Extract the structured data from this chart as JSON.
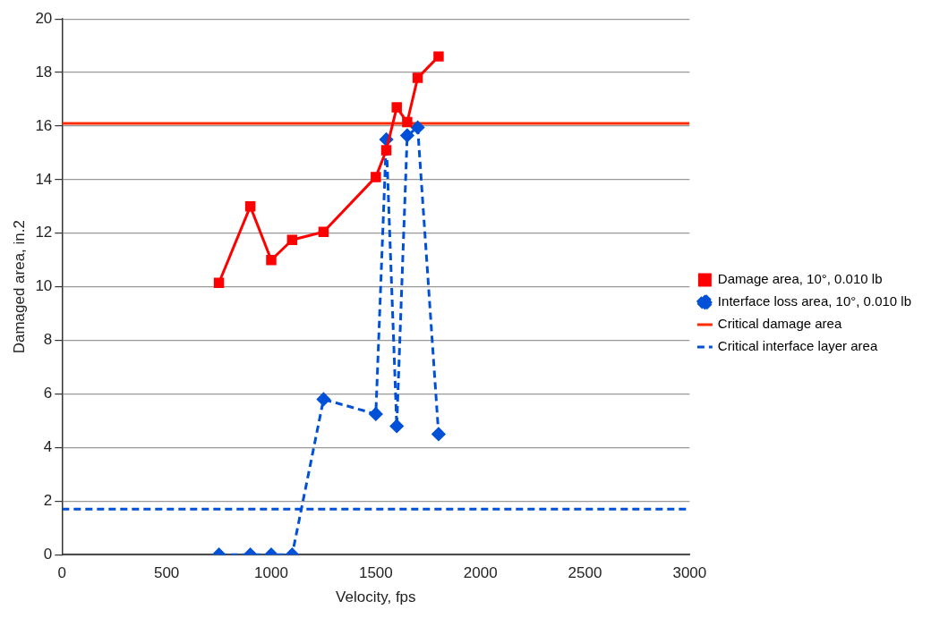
{
  "chart_data": {
    "type": "line",
    "xlabel": "Velocity, fps",
    "ylabel": "Damaged area, in.2",
    "xlim": [
      0,
      3000
    ],
    "xticks": [
      0,
      500,
      1000,
      1500,
      2000,
      2500,
      3000
    ],
    "ylim": [
      0,
      20
    ],
    "yticks": [
      0,
      2,
      4,
      6,
      8,
      10,
      12,
      14,
      16,
      18,
      20
    ],
    "grid": "y",
    "legend": "right",
    "series": [
      {
        "name": "Damage area, 10°, 0.010 lb",
        "color": "#ff0000",
        "marker": "square",
        "line_style": "solid",
        "x": [
          750,
          900,
          1000,
          1100,
          1250,
          1500,
          1550,
          1600,
          1650,
          1700,
          1800
        ],
        "values": [
          10.15,
          13.0,
          11.0,
          11.75,
          12.05,
          14.1,
          15.1,
          16.7,
          16.15,
          17.8,
          18.6
        ]
      },
      {
        "name": "Interface loss area, 10°, 0.010 lb",
        "color": "#0050d8",
        "marker": "diamond",
        "line_style": "dashed",
        "x": [
          750,
          900,
          1000,
          1100,
          1250,
          1500,
          1550,
          1600,
          1650,
          1700,
          1800
        ],
        "values": [
          0,
          0,
          0,
          0,
          5.8,
          5.25,
          15.5,
          4.8,
          15.65,
          15.95,
          4.5
        ]
      },
      {
        "name": "Critical damage area",
        "color": "#ff2a00",
        "marker": "none",
        "line_style": "solid",
        "x": [
          0,
          3000
        ],
        "values": [
          16.1,
          16.1
        ]
      },
      {
        "name": "Critical interface layer area",
        "color": "#0050d8",
        "marker": "none",
        "line_style": "dashed",
        "x": [
          0,
          3000
        ],
        "values": [
          1.7,
          1.7
        ]
      }
    ]
  }
}
